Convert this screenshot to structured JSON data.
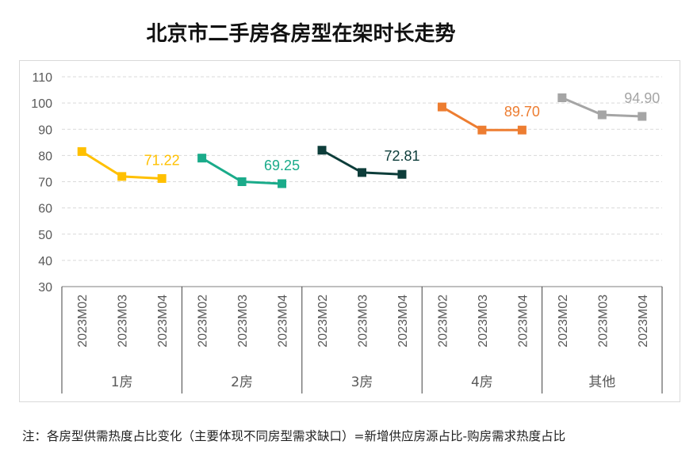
{
  "chart_data": {
    "type": "line",
    "title": "北京市二手房各房型在架时长走势",
    "ylim": [
      30,
      110
    ],
    "yticks": [
      30,
      40,
      50,
      60,
      70,
      80,
      90,
      100,
      110
    ],
    "grid": true,
    "x_periods": [
      "2023M02",
      "2023M03",
      "2023M04"
    ],
    "groups": [
      {
        "name": "1房",
        "color": "#ffc000",
        "values": [
          81.5,
          72.0,
          71.22
        ],
        "last_label": "71.22"
      },
      {
        "name": "2房",
        "color": "#1aab8a",
        "values": [
          79.0,
          70.0,
          69.25
        ],
        "last_label": "69.25"
      },
      {
        "name": "3房",
        "color": "#0d3d3a",
        "values": [
          82.0,
          73.5,
          72.81
        ],
        "last_label": "72.81"
      },
      {
        "name": "4房",
        "color": "#ed7d31",
        "values": [
          98.5,
          89.7,
          89.7
        ],
        "last_label": "89.70"
      },
      {
        "name": "其他",
        "color": "#a5a5a5",
        "values": [
          102.0,
          95.5,
          94.9
        ],
        "last_label": "94.90"
      }
    ]
  },
  "note": "注：各房型供需热度占比变化（主要体现不同房型需求缺口）=新增供应房源占比-购房需求热度占比"
}
